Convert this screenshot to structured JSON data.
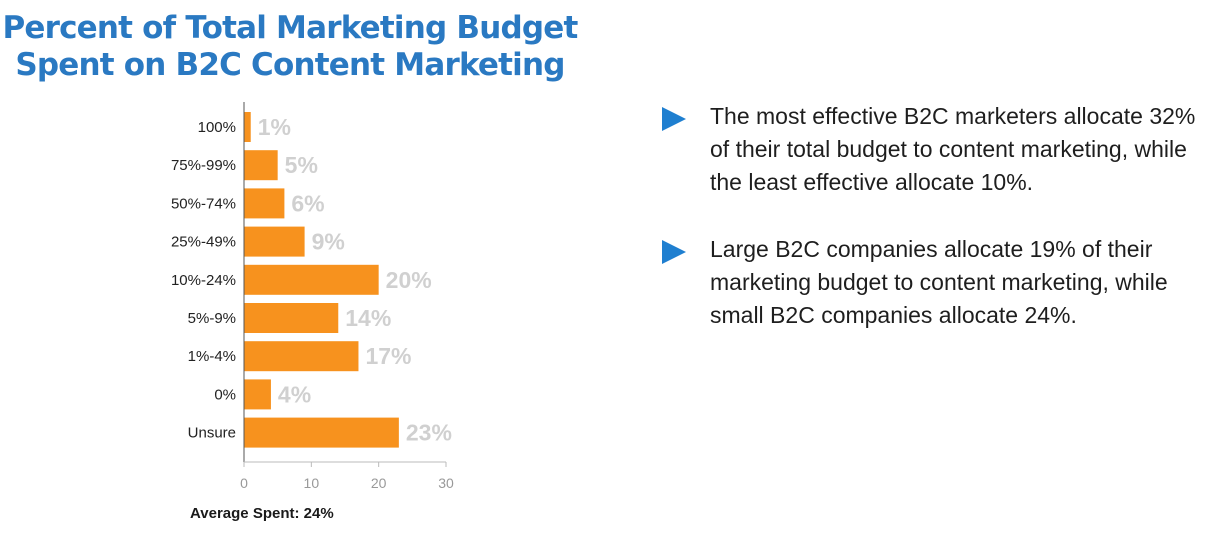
{
  "title": {
    "line1": "Percent of Total Marketing Budget",
    "line2": "Spent on B2C Content Marketing"
  },
  "chart_data": {
    "type": "bar",
    "orientation": "horizontal",
    "categories": [
      "100%",
      "75%-99%",
      "50%-74%",
      "25%-49%",
      "10%-24%",
      "5%-9%",
      "1%-4%",
      "0%",
      "Unsure"
    ],
    "values": [
      1,
      5,
      6,
      9,
      20,
      14,
      17,
      4,
      23
    ],
    "value_labels": [
      "1%",
      "5%",
      "6%",
      "9%",
      "20%",
      "14%",
      "17%",
      "4%",
      "23%"
    ],
    "xlim": [
      0,
      30
    ],
    "xticks": [
      0,
      10,
      20,
      30
    ],
    "bar_color": "#f7921e",
    "value_label_color": "#d0d0d0",
    "grid": false
  },
  "footer": "Average Spent: 24%",
  "bullets": [
    "The most effective B2C marketers allocate 32% of their total budget to content marketing, while the least effective allocate 10%.",
    "Large B2C companies allocate 19% of their marketing budget to content marketing, while small B2C companies allocate 24%."
  ],
  "colors": {
    "title": "#2a79c2",
    "bullet_icon": "#1f7fd0"
  }
}
